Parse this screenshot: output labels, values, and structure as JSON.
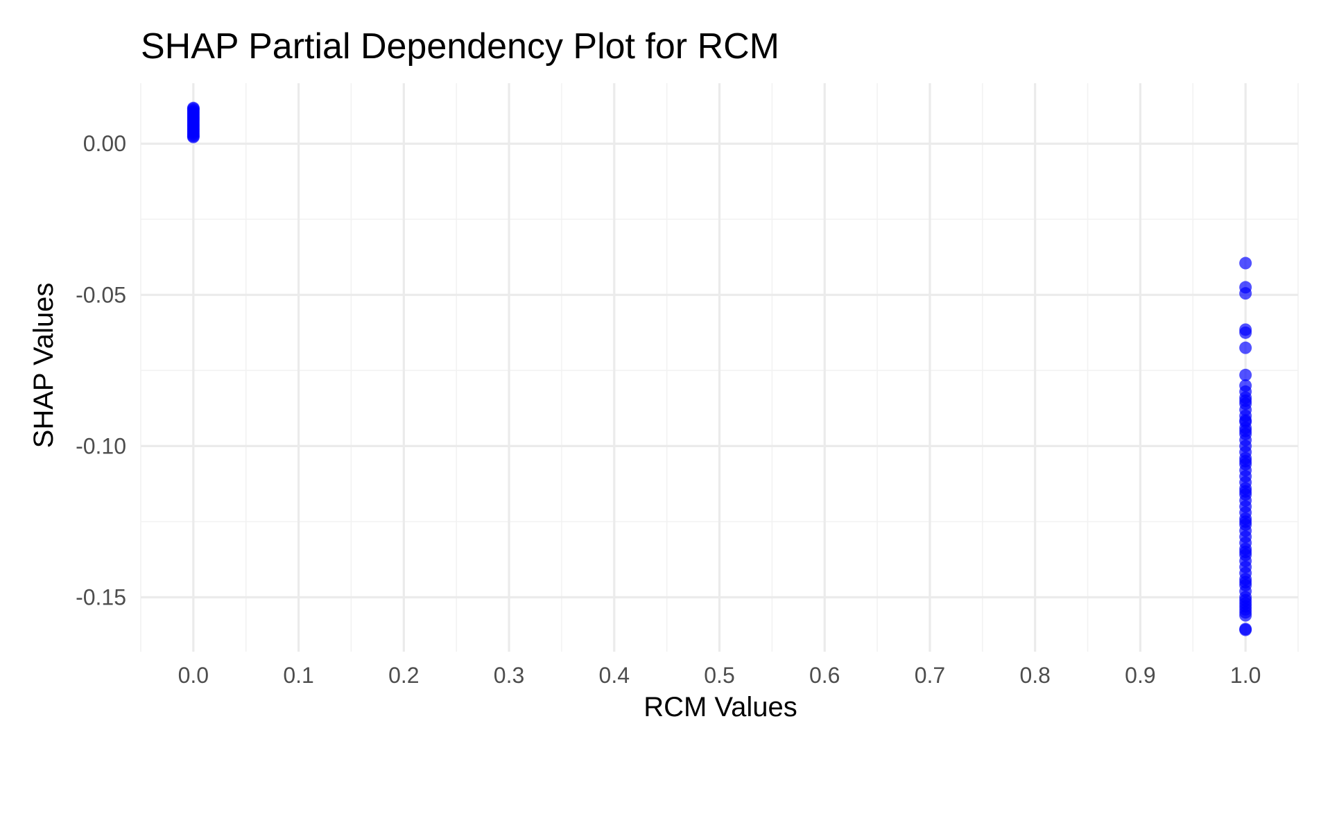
{
  "chart_data": {
    "type": "scatter",
    "title": "SHAP Partial Dependency Plot for RCM",
    "xlabel": "RCM Values",
    "ylabel": "SHAP Values",
    "xlim": [
      -0.05,
      1.05
    ],
    "ylim": [
      -0.168,
      0.02
    ],
    "x_ticks": [
      0.0,
      0.1,
      0.2,
      0.3,
      0.4,
      0.5,
      0.6,
      0.7,
      0.8,
      0.9,
      1.0
    ],
    "x_tick_labels": [
      "0.0",
      "0.1",
      "0.2",
      "0.3",
      "0.4",
      "0.5",
      "0.6",
      "0.7",
      "0.8",
      "0.9",
      "1.0"
    ],
    "y_ticks": [
      0.0,
      -0.05,
      -0.1,
      -0.15
    ],
    "y_tick_labels": [
      "0.00",
      "-0.05",
      "-0.10",
      "-0.15"
    ],
    "grid": true,
    "point_color": "#0000ff",
    "series": [
      {
        "x": [
          0,
          0,
          0,
          0,
          0,
          0,
          0,
          0,
          0,
          0,
          0,
          0,
          0,
          0,
          0,
          0,
          0,
          0,
          0,
          0,
          0,
          1,
          1,
          1,
          1,
          1,
          1,
          1,
          1,
          1,
          1,
          1,
          1,
          1,
          1,
          1,
          1,
          1,
          1,
          1,
          1,
          1,
          1,
          1,
          1,
          1,
          1,
          1,
          1,
          1,
          1,
          1,
          1,
          1,
          1,
          1,
          1,
          1,
          1,
          1,
          1,
          1,
          1,
          1,
          1,
          1,
          1,
          1,
          1,
          1,
          1,
          1,
          1,
          1,
          1,
          1,
          1,
          1,
          1,
          1
        ],
        "y": [
          0.0115,
          0.011,
          0.0105,
          0.01,
          0.0095,
          0.009,
          0.0085,
          0.008,
          0.0075,
          0.007,
          0.0065,
          0.006,
          0.0055,
          0.005,
          0.0045,
          0.004,
          0.0035,
          0.003,
          0.0025,
          0.0022,
          0.0118,
          -0.0395,
          -0.0475,
          -0.0495,
          -0.0615,
          -0.0625,
          -0.0675,
          -0.0765,
          -0.08,
          -0.082,
          -0.084,
          -0.086,
          -0.088,
          -0.09,
          -0.092,
          -0.094,
          -0.096,
          -0.098,
          -0.1,
          -0.102,
          -0.104,
          -0.106,
          -0.108,
          -0.11,
          -0.112,
          -0.114,
          -0.116,
          -0.118,
          -0.12,
          -0.122,
          -0.124,
          -0.126,
          -0.128,
          -0.13,
          -0.132,
          -0.134,
          -0.136,
          -0.138,
          -0.14,
          -0.142,
          -0.144,
          -0.146,
          -0.148,
          -0.15,
          -0.151,
          -0.152,
          -0.153,
          -0.154,
          -0.155,
          -0.156,
          -0.1605,
          -0.1608,
          -0.095,
          -0.105,
          -0.115,
          -0.125,
          -0.135,
          -0.145,
          -0.085,
          -0.0915
        ]
      }
    ]
  }
}
